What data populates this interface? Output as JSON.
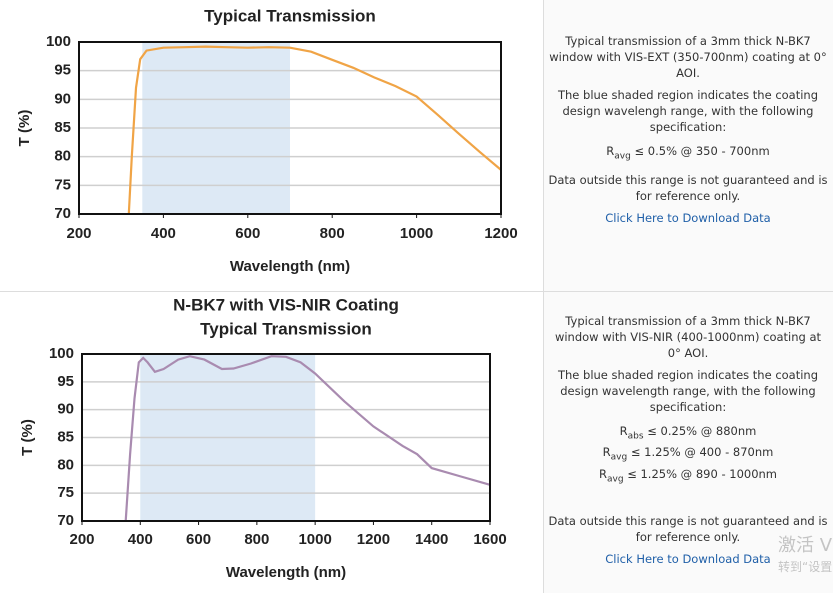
{
  "chart_data": [
    {
      "type": "line",
      "title": "Typical Transmission",
      "x": [
        318,
        325,
        335,
        345,
        360,
        400,
        450,
        500,
        550,
        600,
        650,
        700,
        750,
        800,
        850,
        900,
        950,
        1000,
        1050,
        1100,
        1150,
        1200
      ],
      "values": [
        70,
        80,
        92,
        97,
        98.5,
        99,
        99.1,
        99.2,
        99.1,
        99,
        99.1,
        99,
        98.3,
        96.9,
        95.5,
        93.8,
        92.3,
        90.5,
        87.3,
        84,
        80.8,
        77.7
      ],
      "color": "#f0a446",
      "shaded_range": [
        350,
        700
      ],
      "shade_color": "#dde9f5",
      "x_label": "Wavelength (nm)",
      "y_label": "T (%)",
      "xlim": [
        200,
        1200
      ],
      "xticks": [
        200,
        400,
        600,
        800,
        1000,
        1200
      ],
      "ylim": [
        70,
        100
      ],
      "yticks": [
        70,
        75,
        80,
        85,
        90,
        95,
        100
      ],
      "grid": true
    },
    {
      "type": "line",
      "title": "N-BK7 with VIS-NIR Coating",
      "subtitle": "Typical Transmission",
      "x": [
        350,
        365,
        380,
        395,
        410,
        425,
        450,
        480,
        530,
        570,
        620,
        680,
        720,
        780,
        850,
        900,
        950,
        1000,
        1100,
        1200,
        1300,
        1350,
        1400,
        1500,
        1600
      ],
      "values": [
        70,
        82,
        92,
        98.5,
        99.3,
        98.5,
        96.8,
        97.3,
        99,
        99.6,
        99,
        97.3,
        97.4,
        98.3,
        99.6,
        99.5,
        98.5,
        96.5,
        91.5,
        87,
        83.5,
        82,
        79.5,
        78,
        76.5
      ],
      "color": "#a98bb0",
      "shaded_range": [
        400,
        1000
      ],
      "shade_color": "#dde9f5",
      "x_label": "Wavelength (nm)",
      "y_label": "T (%)",
      "xlim": [
        200,
        1600
      ],
      "xticks": [
        200,
        400,
        600,
        800,
        1000,
        1200,
        1400,
        1600
      ],
      "ylim": [
        70,
        100
      ],
      "yticks": [
        70,
        75,
        80,
        85,
        90,
        95,
        100
      ],
      "grid": true
    }
  ],
  "panels": [
    {
      "paragraphs": [
        "Typical transmission of a 3mm thick N-BK7 window with VIS-EXT (350-700nm) coating at 0° AOI.",
        "The blue shaded region indicates the coating design wavelengh range, with the following specification:"
      ],
      "specs": [
        {
          "symbol": "R",
          "sub": "avg",
          "text": "≤ 0.5% @ 350 - 700nm"
        }
      ],
      "note": "Data outside this range is not guaranteed and is for reference only.",
      "link": "Click Here to Download Data"
    },
    {
      "paragraphs": [
        "Typical transmission of a 3mm thick N-BK7 window with VIS-NIR (400-1000nm) coating at 0° AOI.",
        "The blue shaded region indicates the coating design wavelength range, with the following specification:"
      ],
      "specs": [
        {
          "symbol": "R",
          "sub": "abs",
          "text": "≤ 0.25% @ 880nm"
        },
        {
          "symbol": "R",
          "sub": "avg",
          "text": "≤ 1.25% @ 400 - 870nm"
        },
        {
          "symbol": "R",
          "sub": "avg",
          "text": "≤ 1.25% @ 890 - 1000nm"
        }
      ],
      "note": "Data outside this range is not guaranteed and is for reference only.",
      "link": "Click Here to Download Data"
    }
  ],
  "watermark": [
    "激活 V",
    "转到“设置"
  ]
}
